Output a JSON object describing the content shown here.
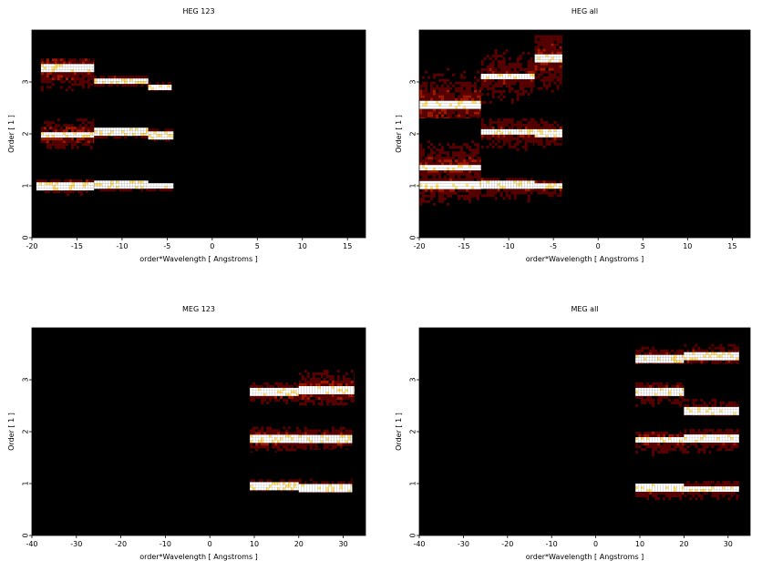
{
  "chart_data": [
    {
      "type": "heatmap",
      "title": "HEG 123",
      "xlabel": "order*Wavelength [ Angstroms ]",
      "ylabel": "Order [ 1 ]",
      "xlim": [
        -20,
        17
      ],
      "ylim": [
        0,
        4
      ],
      "xticks": [
        -20,
        -15,
        -10,
        -5,
        0,
        5,
        10,
        15
      ],
      "yticks": [
        0,
        1,
        2,
        3
      ],
      "colormap": [
        "#000000",
        "#5a0000",
        "#a01800",
        "#e05000",
        "#ffa000",
        "#ffe070",
        "#ffffff"
      ],
      "stripes": [
        {
          "order": 1,
          "segments": [
            {
              "x0": -19.5,
              "x1": -13.1,
              "y0": 0.8,
              "y1": 1.12,
              "level": 0.7,
              "ridge": 1.0
            },
            {
              "x0": -13.1,
              "x1": -7.1,
              "y0": 0.88,
              "y1": 1.1,
              "level": 0.85,
              "ridge": 1.02
            },
            {
              "x0": -7.1,
              "x1": -4.3,
              "y0": 0.85,
              "y1": 1.05,
              "level": 0.8,
              "ridge": 1.0
            }
          ]
        },
        {
          "order": 2,
          "segments": [
            {
              "x0": -19.0,
              "x1": -13.1,
              "y0": 1.7,
              "y1": 2.4,
              "level": 0.55,
              "ridge": 1.98
            },
            {
              "x0": -13.1,
              "x1": -7.1,
              "y0": 1.9,
              "y1": 2.12,
              "level": 0.8,
              "ridge": 2.03
            },
            {
              "x0": -7.1,
              "x1": -4.3,
              "y0": 1.85,
              "y1": 2.1,
              "level": 0.75,
              "ridge": 1.98
            }
          ]
        },
        {
          "order": 3,
          "segments": [
            {
              "x0": -19.0,
              "x1": -13.1,
              "y0": 2.5,
              "y1": 3.45,
              "level": 0.55,
              "ridge": 3.25
            },
            {
              "x0": -13.1,
              "x1": -7.1,
              "y0": 2.9,
              "y1": 3.12,
              "level": 0.8,
              "ridge": 3.02
            },
            {
              "x0": -7.1,
              "x1": -4.5,
              "y0": 2.82,
              "y1": 3.0,
              "level": 0.8,
              "ridge": 2.9
            }
          ]
        }
      ]
    },
    {
      "type": "heatmap",
      "title": "HEG all",
      "xlabel": "order*Wavelength [ Angstroms ]",
      "ylabel": "Order [ 1 ]",
      "xlim": [
        -20,
        17
      ],
      "ylim": [
        0,
        4
      ],
      "xticks": [
        -20,
        -15,
        -10,
        -5,
        0,
        5,
        10,
        15
      ],
      "yticks": [
        0,
        1,
        2,
        3
      ],
      "colormap": [
        "#000000",
        "#5a0000",
        "#a01800",
        "#e05000",
        "#ffa000",
        "#ffe070",
        "#ffffff"
      ],
      "stripes": [
        {
          "order": 1,
          "segments": [
            {
              "x0": -20.0,
              "x1": -13.1,
              "y0": 0.3,
              "y1": 1.25,
              "level": 0.45,
              "ridge": 1.0
            },
            {
              "x0": -13.1,
              "x1": -7.1,
              "y0": 0.3,
              "y1": 1.15,
              "level": 0.45,
              "ridge": 1.03
            },
            {
              "x0": -7.1,
              "x1": -4.0,
              "y0": 0.5,
              "y1": 1.1,
              "level": 0.45,
              "ridge": 1.0
            }
          ]
        },
        {
          "order": 2,
          "segments": [
            {
              "x0": -20.0,
              "x1": -13.1,
              "y0": 1.25,
              "y1": 2.4,
              "level": 0.5,
              "ridge": 1.35
            },
            {
              "x0": -13.1,
              "x1": -7.1,
              "y0": 1.4,
              "y1": 2.3,
              "level": 0.45,
              "ridge": 2.03
            },
            {
              "x0": -7.1,
              "x1": -4.0,
              "y0": 1.5,
              "y1": 2.3,
              "level": 0.45,
              "ridge": 2.0
            }
          ]
        },
        {
          "order": 3,
          "segments": [
            {
              "x0": -20.0,
              "x1": -13.1,
              "y0": 2.3,
              "y1": 3.9,
              "level": 0.5,
              "ridge": 2.55
            },
            {
              "x0": -13.1,
              "x1": -7.1,
              "y0": 2.5,
              "y1": 4.0,
              "level": 0.4,
              "ridge": 3.1
            },
            {
              "x0": -7.1,
              "x1": -4.0,
              "y0": 2.3,
              "y1": 3.9,
              "level": 0.5,
              "ridge": 3.45
            }
          ]
        }
      ]
    },
    {
      "type": "heatmap",
      "title": "MEG 123",
      "xlabel": "order*Wavelength [ Angstroms ]",
      "ylabel": "Order [ 1 ]",
      "xlim": [
        -40,
        35
      ],
      "ylim": [
        0,
        4
      ],
      "xticks": [
        -40,
        -30,
        -20,
        -10,
        0,
        10,
        20,
        30
      ],
      "yticks": [
        0,
        1,
        2,
        3
      ],
      "colormap": [
        "#000000",
        "#5a0000",
        "#a01800",
        "#e05000",
        "#ffa000",
        "#ffe070",
        "#ffffff"
      ],
      "stripes": [
        {
          "order": 1,
          "segments": [
            {
              "x0": 9.0,
              "x1": 20.0,
              "y0": 0.85,
              "y1": 1.08,
              "level": 0.75,
              "ridge": 0.95
            },
            {
              "x0": 20.0,
              "x1": 32.0,
              "y0": 0.82,
              "y1": 1.15,
              "level": 0.6,
              "ridge": 0.92
            }
          ]
        },
        {
          "order": 2,
          "segments": [
            {
              "x0": 9.0,
              "x1": 20.0,
              "y0": 1.6,
              "y1": 2.15,
              "level": 0.6,
              "ridge": 1.85
            },
            {
              "x0": 20.0,
              "x1": 32.0,
              "y0": 1.65,
              "y1": 2.2,
              "level": 0.55,
              "ridge": 1.85
            }
          ]
        },
        {
          "order": 3,
          "segments": [
            {
              "x0": 9.0,
              "x1": 20.0,
              "y0": 2.5,
              "y1": 2.95,
              "level": 0.6,
              "ridge": 2.75
            },
            {
              "x0": 20.0,
              "x1": 32.5,
              "y0": 2.5,
              "y1": 3.35,
              "level": 0.55,
              "ridge": 2.8
            }
          ]
        }
      ]
    },
    {
      "type": "heatmap",
      "title": "MEG all",
      "xlabel": "order*Wavelength [ Angstroms ]",
      "ylabel": "Order [ 1 ]",
      "xlim": [
        -40,
        35
      ],
      "ylim": [
        0,
        4
      ],
      "xticks": [
        -40,
        -30,
        -20,
        -10,
        0,
        10,
        20,
        30
      ],
      "yticks": [
        0,
        1,
        2,
        3
      ],
      "colormap": [
        "#000000",
        "#5a0000",
        "#a01800",
        "#e05000",
        "#ffa000",
        "#ffe070",
        "#ffffff"
      ],
      "stripes": [
        {
          "order": 1,
          "segments": [
            {
              "x0": 9.0,
              "x1": 20.0,
              "y0": 0.4,
              "y1": 1.0,
              "level": 0.5,
              "ridge": 0.92
            },
            {
              "x0": 20.0,
              "x1": 32.5,
              "y0": 0.4,
              "y1": 1.05,
              "level": 0.4,
              "ridge": 0.9
            }
          ]
        },
        {
          "order": 2,
          "segments": [
            {
              "x0": 9.0,
              "x1": 20.0,
              "y0": 1.3,
              "y1": 2.0,
              "level": 0.5,
              "ridge": 1.85
            },
            {
              "x0": 20.0,
              "x1": 32.5,
              "y0": 1.3,
              "y1": 2.05,
              "level": 0.45,
              "ridge": 1.85
            }
          ]
        },
        {
          "order": 3,
          "segments": [
            {
              "x0": 9.0,
              "x1": 20.0,
              "y0": 2.3,
              "y1": 2.95,
              "level": 0.5,
              "ridge": 2.78
            },
            {
              "x0": 20.0,
              "x1": 32.5,
              "y0": 2.3,
              "y1": 2.95,
              "level": 0.45,
              "ridge": 2.4
            }
          ]
        },
        {
          "order": 4,
          "segments": [
            {
              "x0": 9.0,
              "x1": 20.0,
              "y0": 3.3,
              "y1": 3.9,
              "level": 0.5,
              "ridge": 3.4
            },
            {
              "x0": 20.0,
              "x1": 32.5,
              "y0": 3.3,
              "y1": 3.9,
              "level": 0.5,
              "ridge": 3.45
            }
          ]
        }
      ]
    }
  ]
}
